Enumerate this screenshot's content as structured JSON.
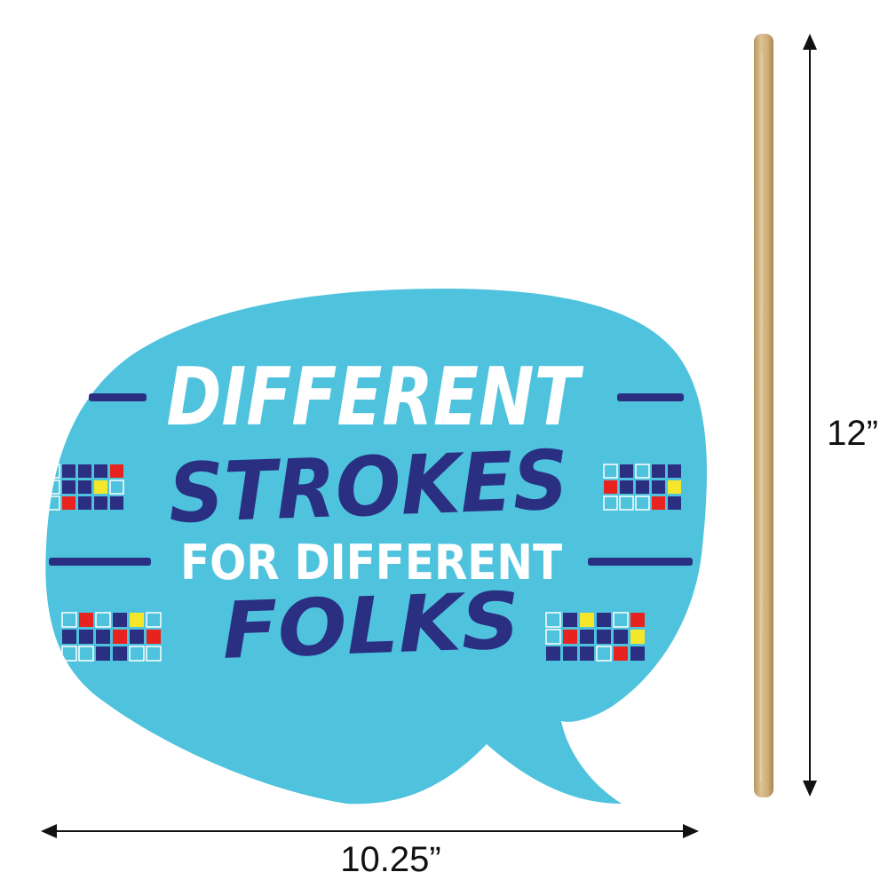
{
  "sign": {
    "line1": "DIFFERENT",
    "line2": "STROKES",
    "line3": "FOR DIFFERENT",
    "line4": "FOLKS"
  },
  "dimensions": {
    "width": "10.25”",
    "height": "12”"
  },
  "colors": {
    "bubble": "#4fc3dd",
    "navy": "#2a2f82",
    "white": "#ffffff",
    "red": "#e8231f",
    "yellow": "#f4e72b",
    "stick": "#cfb07e",
    "arrow": "#111111"
  }
}
